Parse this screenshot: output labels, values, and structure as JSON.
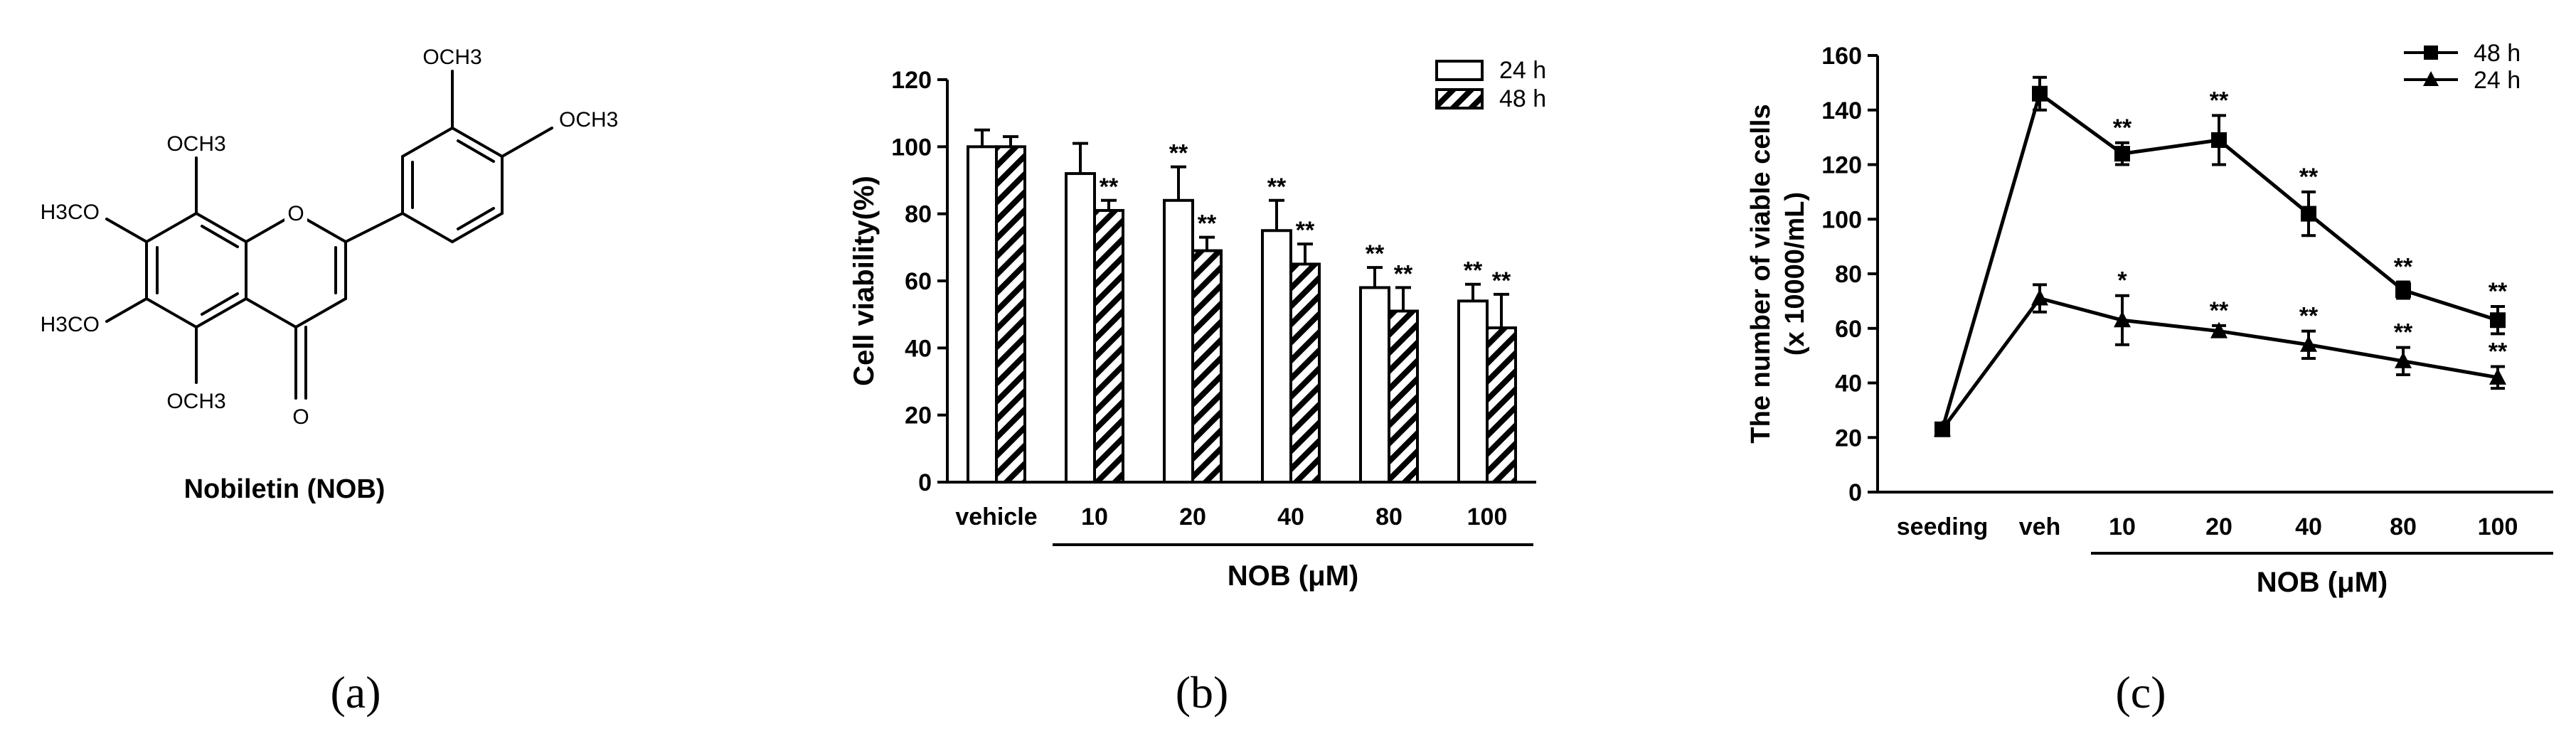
{
  "panel_labels": [
    "(a)",
    "(b)",
    "(c)"
  ],
  "molecule": {
    "name": "Nobiletin (NOB)",
    "substituents": {
      "och3": "OCH3",
      "h3co": "H3CO",
      "ring_o": "O",
      "carbonyl_o": "O"
    }
  },
  "chart_data": [
    {
      "type": "bar",
      "title": "",
      "ylabel": "Cell viability(%)",
      "xlabel": "NOB (μM)",
      "ylim": [
        0,
        120
      ],
      "yticks": [
        0,
        20,
        40,
        60,
        80,
        100,
        120
      ],
      "categories": [
        "vehicle",
        "10",
        "20",
        "40",
        "80",
        "100"
      ],
      "series": [
        {
          "name": "24 h",
          "fill": "white",
          "values": [
            100,
            92,
            84,
            75,
            58,
            54
          ],
          "errors": [
            5,
            9,
            10,
            9,
            6,
            5
          ],
          "annotations": [
            "",
            "",
            "**",
            "**",
            "**",
            "**"
          ]
        },
        {
          "name": "48 h",
          "fill": "hatched",
          "values": [
            100,
            81,
            69,
            65,
            51,
            46
          ],
          "errors": [
            3,
            3,
            4,
            6,
            7,
            10
          ],
          "annotations": [
            "",
            "**",
            "**",
            "**",
            "**",
            "**"
          ]
        }
      ],
      "legend": "top-right"
    },
    {
      "type": "line",
      "title": "",
      "ylabel": "The number of viable cells",
      "ylabel2": "(x 10000/mL)",
      "xlabel": "NOB (μM)",
      "ylim": [
        0,
        160
      ],
      "yticks": [
        0,
        20,
        40,
        60,
        80,
        100,
        120,
        140,
        160
      ],
      "categories": [
        "seeding",
        "veh",
        "10",
        "20",
        "40",
        "80",
        "100"
      ],
      "series": [
        {
          "name": "48 h",
          "marker": "square",
          "values": [
            23,
            146,
            124,
            129,
            102,
            74,
            63
          ],
          "errors": [
            1,
            6,
            4,
            9,
            8,
            3,
            5
          ],
          "annotations": [
            "",
            "",
            "**",
            "**",
            "**",
            "**",
            "**"
          ]
        },
        {
          "name": "24 h",
          "marker": "triangle",
          "values": [
            23,
            71,
            63,
            59,
            54,
            48,
            42
          ],
          "errors": [
            1,
            5,
            9,
            2,
            5,
            5,
            4
          ],
          "annotations": [
            "",
            "",
            "*",
            "**",
            "**",
            "**",
            "**"
          ]
        }
      ],
      "legend": "top-right"
    }
  ]
}
